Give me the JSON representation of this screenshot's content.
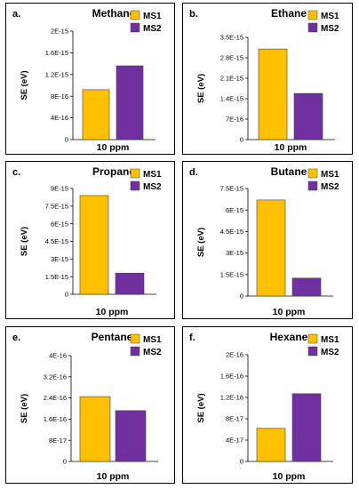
{
  "colors": {
    "MS1": "#FFC000",
    "MS2": "#7030A0",
    "frame": "#000000",
    "bar_edge": "#404040"
  },
  "chart_data": [
    {
      "type": "bar",
      "panel_label": "a.",
      "title": "Methane",
      "categories": [
        "10 ppm"
      ],
      "xlabel": "10 ppm",
      "ylabel": "SE (eV)",
      "ylim": [
        0,
        2e-15
      ],
      "yticks": [
        0,
        4e-16,
        8e-16,
        1.2e-15,
        1.6e-15,
        2e-15
      ],
      "ytick_labels": [
        "0",
        "4E-16",
        "8E-16",
        "1.2E-15",
        "1.6E-15",
        "2E-15"
      ],
      "series": [
        {
          "name": "MS1",
          "values": [
            9.2e-16
          ]
        },
        {
          "name": "MS2",
          "values": [
            1.36e-15
          ]
        }
      ],
      "legend": "top-right",
      "grid": false
    },
    {
      "type": "bar",
      "panel_label": "b.",
      "title": "Ethane",
      "categories": [
        "10 ppm"
      ],
      "xlabel": "10 ppm",
      "ylabel": "SE (eV)",
      "ylim": [
        0,
        3.5e-15
      ],
      "yticks": [
        0,
        7e-16,
        1.4e-15,
        2.1e-15,
        2.8e-15,
        3.5e-15
      ],
      "ytick_labels": [
        "0",
        "7E-16",
        "1.4E-15",
        "2.1E-15",
        "2.8E-15",
        "3.5E-15"
      ],
      "series": [
        {
          "name": "MS1",
          "values": [
            3.1e-15
          ]
        },
        {
          "name": "MS2",
          "values": [
            1.58e-15
          ]
        }
      ],
      "legend": "top-right",
      "grid": false
    },
    {
      "type": "bar",
      "panel_label": "c.",
      "title": "Propane",
      "categories": [
        "10 ppm"
      ],
      "xlabel": "10 ppm",
      "ylabel": "SE (eV)",
      "ylim": [
        0,
        9e-15
      ],
      "yticks": [
        0,
        1.5e-15,
        3e-15,
        4.5e-15,
        6e-15,
        7.5e-15,
        9e-15
      ],
      "ytick_labels": [
        "0",
        "1.5E-15",
        "3E-15",
        "4.5E-15",
        "6E-15",
        "7.5E-15",
        "9E-15"
      ],
      "series": [
        {
          "name": "MS1",
          "values": [
            8.4e-15
          ]
        },
        {
          "name": "MS2",
          "values": [
            1.8e-15
          ]
        }
      ],
      "legend": "top-right",
      "grid": false
    },
    {
      "type": "bar",
      "panel_label": "d.",
      "title": "Butane",
      "categories": [
        "10 ppm"
      ],
      "xlabel": "10 ppm",
      "ylabel": "SE (eV)",
      "ylim": [
        0,
        7.5e-15
      ],
      "yticks": [
        0,
        1.5e-15,
        3e-15,
        4.5e-15,
        6e-15,
        7.5e-15
      ],
      "ytick_labels": [
        "0",
        "1.5E-15",
        "3E-15",
        "4.5E-15",
        "6E-15",
        "7.5E-15"
      ],
      "series": [
        {
          "name": "MS1",
          "values": [
            6.7e-15
          ]
        },
        {
          "name": "MS2",
          "values": [
            1.25e-15
          ]
        }
      ],
      "legend": "top-right",
      "grid": false
    },
    {
      "type": "bar",
      "panel_label": "e.",
      "title": "Pentane",
      "categories": [
        "10 ppm"
      ],
      "xlabel": "10 ppm",
      "ylabel": "SE (eV)",
      "ylim": [
        0,
        4e-16
      ],
      "yticks": [
        0,
        8e-17,
        1.6e-16,
        2.4e-16,
        3.2e-16,
        4e-16
      ],
      "ytick_labels": [
        "0",
        "8E-17",
        "1.6E-16",
        "2.4E-16",
        "3.2E-16",
        "4E-16"
      ],
      "series": [
        {
          "name": "MS1",
          "values": [
            2.45e-16
          ]
        },
        {
          "name": "MS2",
          "values": [
            1.92e-16
          ]
        }
      ],
      "legend": "top-right",
      "grid": false
    },
    {
      "type": "bar",
      "panel_label": "f.",
      "title": "Hexane",
      "categories": [
        "10 ppm"
      ],
      "xlabel": "10 ppm",
      "ylabel": "SE (eV)",
      "ylim": [
        0,
        2e-16
      ],
      "yticks": [
        0,
        4e-17,
        8e-17,
        1.2e-16,
        1.6e-16,
        2e-16
      ],
      "ytick_labels": [
        "0",
        "4E-17",
        "8E-17",
        "1.2E-16",
        "1.6E-16",
        "2E-16"
      ],
      "series": [
        {
          "name": "MS1",
          "values": [
            6.2e-17
          ]
        },
        {
          "name": "MS2",
          "values": [
            1.27e-16
          ]
        }
      ],
      "legend": "top-right",
      "grid": false
    }
  ]
}
